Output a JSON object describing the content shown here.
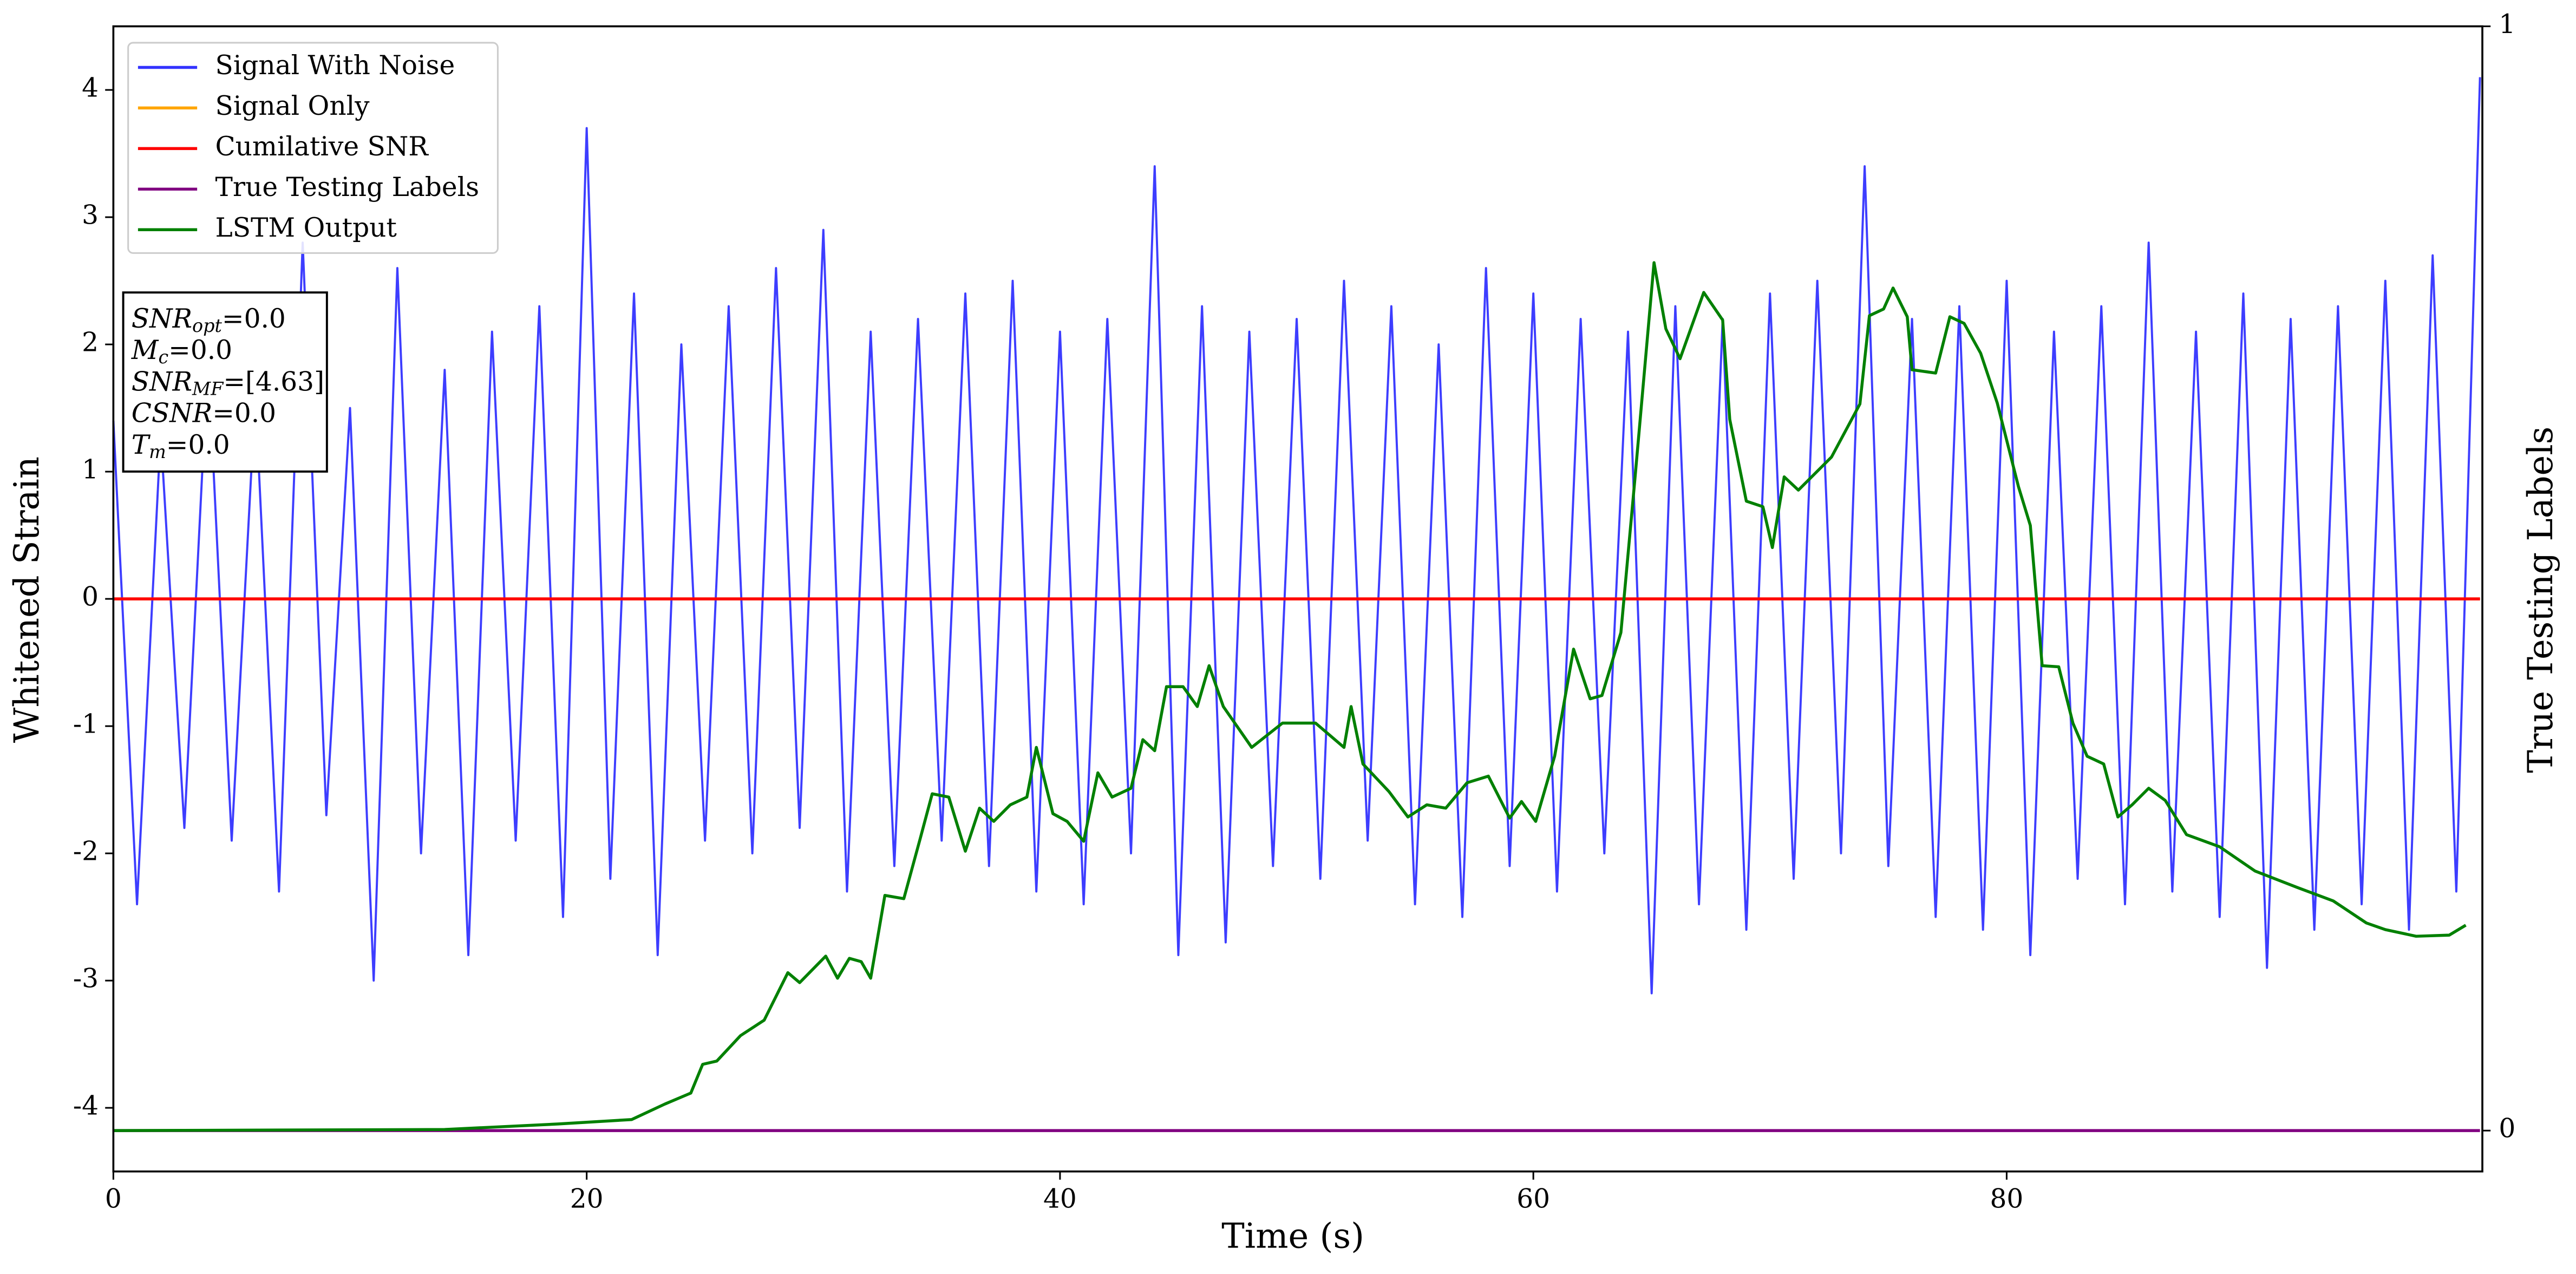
{
  "chart_data": {
    "type": "line",
    "xlabel": "Time (s)",
    "ylabel": "Whitened Strain",
    "y2label": "True Testing Labels",
    "xlim": [
      0,
      100.1
    ],
    "xticks": [
      0,
      20,
      40,
      60,
      80
    ],
    "ylim": [
      -4.5,
      4.5
    ],
    "yticks": [
      -4,
      -3,
      -2,
      -1,
      0,
      1,
      2,
      3,
      4
    ],
    "y2lim": [
      -0.037,
      1
    ],
    "y2ticks": [
      0,
      1
    ],
    "legend": "upper left",
    "annotation": [
      [
        "SNR",
        "opt",
        "=0.0"
      ],
      [
        "M",
        "c",
        "=0.0"
      ],
      [
        "SNR",
        "MF",
        "=[4.63]"
      ],
      [
        "CSNR",
        null,
        "=0.0"
      ],
      [
        "T",
        "m",
        "=0.0"
      ]
    ],
    "series": [
      {
        "name": "Signal With Noise",
        "color": "#3333ff",
        "x": [
          0,
          1,
          2,
          3,
          4,
          5,
          6,
          7,
          8,
          9,
          10,
          11,
          12,
          13,
          14,
          15,
          16,
          17,
          18,
          19,
          20,
          21,
          22,
          23,
          24,
          25,
          26,
          27,
          28,
          29,
          30,
          31,
          32,
          33,
          34,
          35,
          36,
          37,
          38,
          39,
          40,
          41,
          42,
          43,
          44,
          45,
          46,
          47,
          48,
          49,
          50,
          51,
          52,
          53,
          54,
          55,
          56,
          57,
          58,
          59,
          60,
          61,
          62,
          63,
          64,
          65,
          66,
          67,
          68,
          69,
          70,
          71,
          72,
          73,
          74,
          75,
          76,
          77,
          78,
          79,
          80,
          81,
          82,
          83,
          84,
          85,
          86,
          87,
          88,
          89,
          90,
          91,
          92,
          93,
          94,
          95,
          96,
          97,
          98,
          99,
          100
        ],
        "values": [
          1.4,
          -2.4,
          1.3,
          -1.8,
          1.9,
          -1.9,
          1.6,
          -2.3,
          2.8,
          -1.7,
          1.5,
          -3.0,
          2.6,
          -2.0,
          1.8,
          -2.8,
          2.1,
          -1.9,
          2.3,
          -2.5,
          3.7,
          -2.2,
          2.4,
          -2.8,
          2.0,
          -1.9,
          2.3,
          -2.0,
          2.6,
          -1.8,
          2.9,
          -2.3,
          2.1,
          -2.1,
          2.2,
          -1.9,
          2.4,
          -2.1,
          2.5,
          -2.3,
          2.1,
          -2.4,
          2.2,
          -2.0,
          3.4,
          -2.8,
          2.3,
          -2.7,
          2.1,
          -2.1,
          2.2,
          -2.2,
          2.5,
          -1.9,
          2.3,
          -2.4,
          2.0,
          -2.5,
          2.6,
          -2.1,
          2.4,
          -2.3,
          2.2,
          -2.0,
          2.1,
          -3.1,
          2.3,
          -2.4,
          2.2,
          -2.6,
          2.4,
          -2.2,
          2.5,
          -2.0,
          3.4,
          -2.1,
          2.2,
          -2.5,
          2.3,
          -2.6,
          2.5,
          -2.8,
          2.1,
          -2.2,
          2.3,
          -2.4,
          2.8,
          -2.3,
          2.1,
          -2.5,
          2.4,
          -2.9,
          2.2,
          -2.6,
          2.3,
          -2.4,
          2.5,
          -2.6,
          2.7,
          -2.3,
          4.1
        ]
      },
      {
        "name": "Signal Only",
        "color": "#ffa500",
        "x": [
          0,
          100
        ],
        "values": [
          0,
          0
        ]
      },
      {
        "name": "Cumilative SNR",
        "color": "#ff0000",
        "x": [
          0,
          100
        ],
        "values": [
          0,
          0
        ]
      },
      {
        "name": "True Testing Labels",
        "color": "#800080",
        "axis": "y2",
        "x": [
          0,
          100
        ],
        "values": [
          0,
          0
        ]
      },
      {
        "name": "LSTM Output",
        "color": "#008000",
        "axis": "y2",
        "x": [
          0,
          14.0,
          18.8,
          21.9,
          23.3,
          24.4,
          24.9,
          25.5,
          26.5,
          27.5,
          28.5,
          29.0,
          30.1,
          30.6,
          31.1,
          31.6,
          32.0,
          32.6,
          33.4,
          34.1,
          34.6,
          35.3,
          36.0,
          36.6,
          37.2,
          37.9,
          38.6,
          39.0,
          39.7,
          40.3,
          41.0,
          41.6,
          42.2,
          43.0,
          43.5,
          44.0,
          44.5,
          45.2,
          45.8,
          46.3,
          46.9,
          48.1,
          49.4,
          50.8,
          52.0,
          52.3,
          52.8,
          53.9,
          54.7,
          55.5,
          56.3,
          57.2,
          58.1,
          59.0,
          59.5,
          60.1,
          60.9,
          61.7,
          62.4,
          62.9,
          63.7,
          64.3,
          65.1,
          65.6,
          66.2,
          67.2,
          68.0,
          68.3,
          69.0,
          69.7,
          70.1,
          70.6,
          71.2,
          72.6,
          73.8,
          74.2,
          74.8,
          75.2,
          75.8,
          76.0,
          77.0,
          77.6,
          78.2,
          78.9,
          79.6,
          80.5,
          81.0,
          81.5,
          82.2,
          82.8,
          83.4,
          84.1,
          84.7,
          85.3,
          86.0,
          86.7,
          87.6,
          89.0,
          90.5,
          92.3,
          93.8,
          95.2,
          96.0,
          97.3,
          98.7,
          99.4
        ],
        "values": [
          0,
          0.001,
          0.006,
          0.01,
          0.024,
          0.034,
          0.06,
          0.063,
          0.086,
          0.1,
          0.143,
          0.134,
          0.158,
          0.138,
          0.156,
          0.153,
          0.138,
          0.213,
          0.21,
          0.265,
          0.305,
          0.302,
          0.253,
          0.292,
          0.28,
          0.295,
          0.302,
          0.347,
          0.287,
          0.28,
          0.262,
          0.324,
          0.302,
          0.31,
          0.354,
          0.344,
          0.402,
          0.402,
          0.384,
          0.421,
          0.384,
          0.347,
          0.369,
          0.369,
          0.347,
          0.384,
          0.332,
          0.307,
          0.284,
          0.295,
          0.292,
          0.315,
          0.321,
          0.283,
          0.298,
          0.28,
          0.339,
          0.436,
          0.391,
          0.394,
          0.451,
          0.592,
          0.786,
          0.726,
          0.699,
          0.759,
          0.734,
          0.644,
          0.57,
          0.565,
          0.528,
          0.592,
          0.58,
          0.61,
          0.658,
          0.738,
          0.744,
          0.763,
          0.737,
          0.689,
          0.686,
          0.737,
          0.731,
          0.704,
          0.659,
          0.583,
          0.548,
          0.421,
          0.42,
          0.369,
          0.339,
          0.332,
          0.284,
          0.295,
          0.31,
          0.299,
          0.268,
          0.257,
          0.235,
          0.22,
          0.208,
          0.188,
          0.182,
          0.176,
          0.177,
          0.186
        ]
      }
    ]
  }
}
